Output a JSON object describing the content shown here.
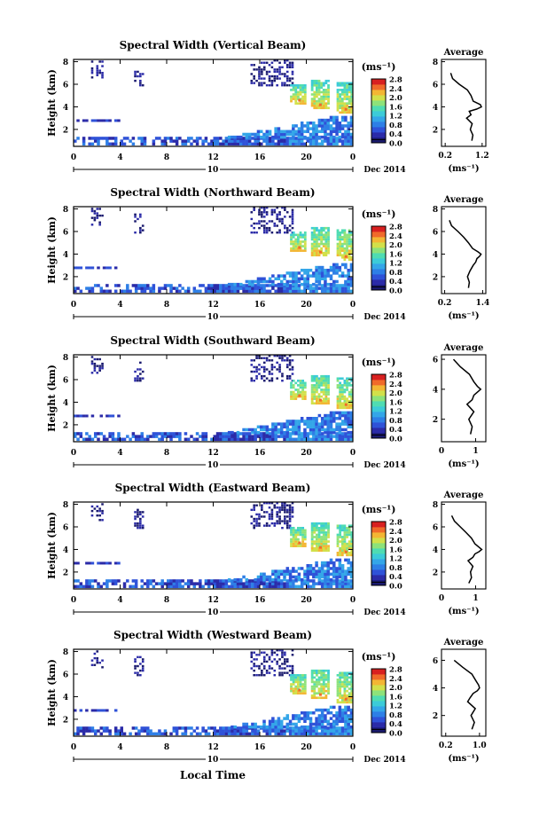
{
  "figure": {
    "xlabel": "Local Time",
    "day_label": "10",
    "date_label": "Dec 2014",
    "ylabel": "Height (km)",
    "colorbar_unit": "(ms⁻¹)",
    "average_title": "Average",
    "average_xlabel": "(ms⁻¹)"
  },
  "colors": {
    "white": "#ffffff",
    "colorscale": [
      "#1a1a6e",
      "#2b2ba8",
      "#2f52d8",
      "#2e7fe6",
      "#34a6e8",
      "#3ccbd8",
      "#4fdcb2",
      "#8de27a",
      "#d2e04a",
      "#f3b634",
      "#f06a2a",
      "#d82020"
    ]
  },
  "chart_data": [
    {
      "type": "heatmap",
      "title": "Spectral Width (Vertical Beam)",
      "x_ticks": [
        "0",
        "4",
        "8",
        "12",
        "16",
        "20",
        "0"
      ],
      "y_ticks": [
        "2",
        "4",
        "6",
        "8"
      ],
      "xlim": [
        0,
        24
      ],
      "ylim": [
        0.5,
        8.2
      ],
      "colorbar_ticks": [
        "0.0",
        "0.4",
        "0.8",
        "1.2",
        "1.6",
        "2.0",
        "2.4",
        "2.8"
      ],
      "colorbar_range": [
        0,
        2.8
      ],
      "average_profile": {
        "x_ticks": [
          "0.2",
          "1.2"
        ],
        "xlim": [
          0.1,
          1.3
        ],
        "y_ticks": [
          "2",
          "4",
          "6",
          "8"
        ],
        "ylim": [
          0.5,
          8.2
        ],
        "heights": [
          1.0,
          1.5,
          2.0,
          2.5,
          3.0,
          3.3,
          3.6,
          3.8,
          4.0,
          4.2,
          4.5,
          5.0,
          5.5,
          6.0,
          6.5,
          7.0
        ],
        "values": [
          0.92,
          0.95,
          0.88,
          0.93,
          0.78,
          0.9,
          0.85,
          1.05,
          1.18,
          1.15,
          0.96,
          0.9,
          0.8,
          0.58,
          0.4,
          0.35
        ]
      }
    },
    {
      "type": "heatmap",
      "title": "Spectral Width (Northward Beam)",
      "x_ticks": [
        "0",
        "4",
        "8",
        "12",
        "16",
        "20",
        "0"
      ],
      "y_ticks": [
        "2",
        "4",
        "6",
        "8"
      ],
      "xlim": [
        0,
        24
      ],
      "ylim": [
        0.5,
        8.2
      ],
      "colorbar_ticks": [
        "0.0",
        "0.4",
        "0.8",
        "1.2",
        "1.6",
        "2.0",
        "2.4",
        "2.8"
      ],
      "colorbar_range": [
        0,
        2.8
      ],
      "average_profile": {
        "x_ticks": [
          "0.2",
          "1.4"
        ],
        "xlim": [
          0.1,
          1.5
        ],
        "y_ticks": [
          "2",
          "4",
          "6",
          "8"
        ],
        "ylim": [
          0.5,
          8.2
        ],
        "heights": [
          1.0,
          1.5,
          2.0,
          2.5,
          3.0,
          3.3,
          3.6,
          3.8,
          4.0,
          4.2,
          4.5,
          5.0,
          5.5,
          6.0,
          6.5,
          7.0
        ],
        "values": [
          0.95,
          0.98,
          0.92,
          1.0,
          1.1,
          1.18,
          1.22,
          1.3,
          1.35,
          1.25,
          1.08,
          0.95,
          0.8,
          0.62,
          0.42,
          0.35
        ]
      }
    },
    {
      "type": "heatmap",
      "title": "Spectral Width (Southward Beam)",
      "x_ticks": [
        "0",
        "4",
        "8",
        "12",
        "16",
        "20",
        "0"
      ],
      "y_ticks": [
        "2",
        "4",
        "6",
        "8"
      ],
      "xlim": [
        0,
        24
      ],
      "ylim": [
        0.5,
        8.2
      ],
      "colorbar_ticks": [
        "0.0",
        "0.4",
        "0.8",
        "1.2",
        "1.6",
        "2.0",
        "2.4",
        "2.8"
      ],
      "colorbar_range": [
        0,
        2.8
      ],
      "average_profile": {
        "x_ticks": [
          "0",
          "1"
        ],
        "xlim": [
          0,
          1.3
        ],
        "y_ticks": [
          "2",
          "4",
          "6"
        ],
        "ylim": [
          0.5,
          6.3
        ],
        "heights": [
          1.0,
          1.5,
          2.0,
          2.5,
          3.0,
          3.3,
          3.6,
          3.8,
          4.0,
          4.2,
          4.5,
          5.0,
          5.5,
          6.0
        ],
        "values": [
          0.85,
          0.9,
          0.8,
          0.95,
          0.75,
          0.9,
          0.95,
          1.05,
          1.15,
          1.05,
          0.95,
          0.82,
          0.55,
          0.35
        ]
      }
    },
    {
      "type": "heatmap",
      "title": "Spectral Width (Eastward Beam)",
      "x_ticks": [
        "0",
        "4",
        "8",
        "12",
        "16",
        "20",
        "0"
      ],
      "y_ticks": [
        "2",
        "4",
        "6",
        "8"
      ],
      "xlim": [
        0,
        24
      ],
      "ylim": [
        0.5,
        8.2
      ],
      "colorbar_ticks": [
        "0.0",
        "0.4",
        "0.8",
        "1.2",
        "1.6",
        "2.0",
        "2.4",
        "2.8"
      ],
      "colorbar_range": [
        0,
        2.8
      ],
      "average_profile": {
        "x_ticks": [
          "0",
          "1"
        ],
        "xlim": [
          0,
          1.3
        ],
        "y_ticks": [
          "2",
          "4",
          "6",
          "8"
        ],
        "ylim": [
          0.5,
          8.2
        ],
        "heights": [
          1.0,
          1.5,
          2.0,
          2.5,
          3.0,
          3.3,
          3.6,
          3.8,
          4.0,
          4.2,
          4.5,
          5.0,
          5.5,
          6.0,
          6.5,
          7.0
        ],
        "values": [
          0.8,
          0.88,
          0.85,
          0.92,
          0.78,
          0.92,
          0.98,
          1.1,
          1.18,
          1.1,
          0.98,
          0.88,
          0.72,
          0.55,
          0.38,
          0.3
        ]
      }
    },
    {
      "type": "heatmap",
      "title": "Spectral Width (Westward Beam)",
      "x_ticks": [
        "0",
        "4",
        "8",
        "12",
        "16",
        "20",
        "0"
      ],
      "y_ticks": [
        "2",
        "4",
        "6",
        "8"
      ],
      "xlim": [
        0,
        24
      ],
      "ylim": [
        0.5,
        8.2
      ],
      "colorbar_ticks": [
        "0.0",
        "0.4",
        "0.8",
        "1.2",
        "1.6",
        "2.0",
        "2.4",
        "2.8"
      ],
      "colorbar_range": [
        0,
        2.8
      ],
      "average_profile": {
        "x_ticks": [
          "0.2",
          "1.0"
        ],
        "xlim": [
          0.1,
          1.15
        ],
        "y_ticks": [
          "2",
          "4",
          "6"
        ],
        "ylim": [
          0.5,
          6.8
        ],
        "heights": [
          1.0,
          1.5,
          2.0,
          2.5,
          3.0,
          3.3,
          3.6,
          3.8,
          4.0,
          4.2,
          4.5,
          5.0,
          5.5,
          6.0
        ],
        "values": [
          0.82,
          0.88,
          0.8,
          0.9,
          0.72,
          0.78,
          0.85,
          0.95,
          1.0,
          0.98,
          0.92,
          0.82,
          0.6,
          0.4
        ]
      }
    }
  ]
}
